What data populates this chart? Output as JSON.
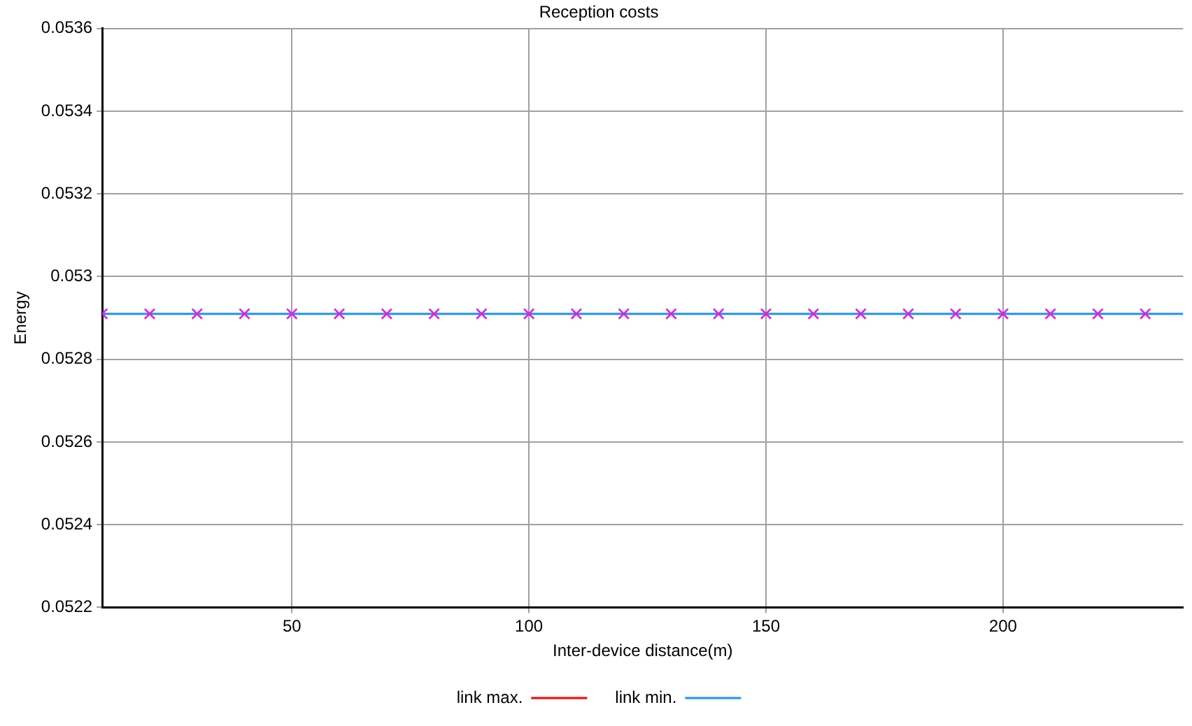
{
  "chart_data": {
    "type": "line",
    "title": "Reception costs",
    "xlabel": "Inter-device distance(m)",
    "ylabel": "Energy",
    "xlim": [
      10,
      238
    ],
    "xticks": [
      50,
      100,
      150,
      200
    ],
    "ylim": [
      0.0522,
      0.0536
    ],
    "yticks": [
      0.0522,
      0.0524,
      0.0526,
      0.0528,
      0.053,
      0.0532,
      0.0534,
      0.0536
    ],
    "grid": true,
    "legend": "bottom",
    "marker": "none",
    "series": [
      {
        "name": "link max.",
        "color": "#ff0000"
      },
      {
        "name": "link min.",
        "color": "#1e90ff",
        "x": [
          10,
          238
        ],
        "values": [
          0.05291,
          0.05291
        ]
      },
      {
        "type": "scatter",
        "marker": "cross",
        "color": "#e020e0",
        "x": [
          10,
          20,
          30,
          40,
          50,
          60,
          70,
          80,
          90,
          100,
          110,
          120,
          130,
          140,
          150,
          160,
          170,
          180,
          190,
          200,
          210,
          220,
          230
        ],
        "values": [
          0.05291,
          0.05291,
          0.05291,
          0.05291,
          0.05291,
          0.05291,
          0.05291,
          0.05291,
          0.05291,
          0.05291,
          0.05291,
          0.05291,
          0.05291,
          0.05291,
          0.05291,
          0.05291,
          0.05291,
          0.05291,
          0.05291,
          0.05291,
          0.05291,
          0.05291,
          0.05291
        ]
      }
    ]
  }
}
